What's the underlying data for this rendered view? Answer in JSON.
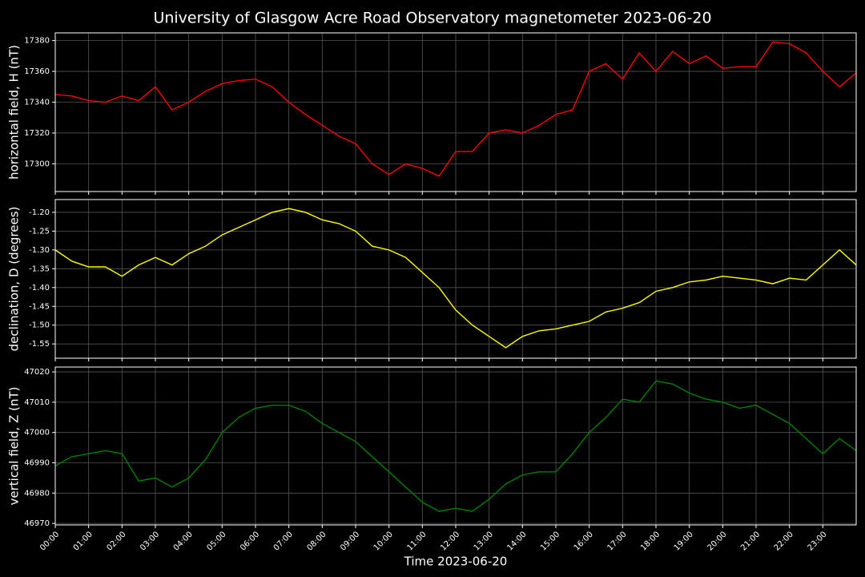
{
  "title": "University of Glasgow Acre Road Observatory magnetometer 2023-06-20",
  "chart_data": [
    {
      "type": "line",
      "y_label": "horizontal field, H (nT)",
      "xlim": [
        0,
        24
      ],
      "ylim": [
        17282,
        17385
      ],
      "grid": true,
      "yticks": [
        17300,
        17320,
        17340,
        17360,
        17380
      ],
      "x": [
        0,
        0.5,
        1,
        1.5,
        2,
        2.5,
        3,
        3.5,
        4,
        4.5,
        5,
        5.5,
        6,
        6.5,
        7,
        7.5,
        8,
        8.5,
        9,
        9.5,
        10,
        10.5,
        11,
        11.5,
        12,
        12.5,
        13,
        13.5,
        14,
        14.5,
        15,
        15.5,
        16,
        16.5,
        17,
        17.5,
        18,
        18.5,
        19,
        19.5,
        20,
        20.5,
        21,
        21.5,
        22,
        22.5,
        23,
        23.5,
        24
      ],
      "series": [
        {
          "name": "H",
          "color": "#ff0000",
          "values": [
            17345,
            17344,
            17341,
            17340,
            17344,
            17341,
            17350,
            17335,
            17340,
            17347,
            17352,
            17354,
            17355,
            17350,
            17340,
            17332,
            17325,
            17318,
            17313,
            17300,
            17293,
            17300,
            17297,
            17292,
            17308,
            17308,
            17320,
            17322,
            17320,
            17325,
            17332,
            17335,
            17360,
            17365,
            17355,
            17372,
            17360,
            17373,
            17365,
            17370,
            17362,
            17363,
            17363,
            17379,
            17378,
            17372,
            17360,
            17350,
            17359
          ]
        }
      ]
    },
    {
      "type": "line",
      "y_label": "declination, D (degrees)",
      "xlim": [
        0,
        24
      ],
      "ylim": [
        -1.588,
        -1.166
      ],
      "grid": true,
      "yticks": [
        {
          "value": -1.55,
          "label": "-1.55"
        },
        {
          "value": -1.5,
          "label": "-1.50"
        },
        {
          "value": -1.45,
          "label": "-1.45"
        },
        {
          "value": -1.4,
          "label": "-1.40"
        },
        {
          "value": -1.35,
          "label": "-1.35"
        },
        {
          "value": -1.3,
          "label": "-1.30"
        },
        {
          "value": -1.25,
          "label": "-1.25"
        },
        {
          "value": -1.2,
          "label": "-1.20"
        }
      ],
      "x": [
        0,
        0.5,
        1,
        1.5,
        2,
        2.5,
        3,
        3.5,
        4,
        4.5,
        5,
        5.5,
        6,
        6.5,
        7,
        7.5,
        8,
        8.5,
        9,
        9.5,
        10,
        10.5,
        11,
        11.5,
        12,
        12.5,
        13,
        13.5,
        14,
        14.5,
        15,
        15.5,
        16,
        16.5,
        17,
        17.5,
        18,
        18.5,
        19,
        19.5,
        20,
        20.5,
        21,
        21.5,
        22,
        22.5,
        23,
        23.5,
        24
      ],
      "series": [
        {
          "name": "D",
          "color": "#ffff00",
          "values": [
            -1.3,
            -1.33,
            -1.345,
            -1.345,
            -1.37,
            -1.34,
            -1.32,
            -1.34,
            -1.31,
            -1.29,
            -1.26,
            -1.24,
            -1.22,
            -1.2,
            -1.19,
            -1.2,
            -1.22,
            -1.23,
            -1.25,
            -1.29,
            -1.3,
            -1.32,
            -1.36,
            -1.4,
            -1.46,
            -1.5,
            -1.53,
            -1.56,
            -1.53,
            -1.515,
            -1.51,
            -1.5,
            -1.49,
            -1.465,
            -1.455,
            -1.44,
            -1.41,
            -1.4,
            -1.385,
            -1.38,
            -1.37,
            -1.375,
            -1.38,
            -1.39,
            -1.375,
            -1.38,
            -1.34,
            -1.3,
            -1.34
          ]
        }
      ]
    },
    {
      "type": "line",
      "y_label": "vertical field, Z (nT)",
      "x_label": "Time 2023-06-20",
      "xlim": [
        0,
        24
      ],
      "ylim": [
        46969.5,
        47021.6
      ],
      "grid": true,
      "yticks": [
        46970,
        46980,
        46990,
        47000,
        47010,
        47020
      ],
      "xticks": [
        {
          "value": 0,
          "label": "00:00"
        },
        {
          "value": 1,
          "label": "01:00"
        },
        {
          "value": 2,
          "label": "02:00"
        },
        {
          "value": 3,
          "label": "03:00"
        },
        {
          "value": 4,
          "label": "04:00"
        },
        {
          "value": 5,
          "label": "05:00"
        },
        {
          "value": 6,
          "label": "06:00"
        },
        {
          "value": 7,
          "label": "07:00"
        },
        {
          "value": 8,
          "label": "08:00"
        },
        {
          "value": 9,
          "label": "09:00"
        },
        {
          "value": 10,
          "label": "10:00"
        },
        {
          "value": 11,
          "label": "11:00"
        },
        {
          "value": 12,
          "label": "12:00"
        },
        {
          "value": 13,
          "label": "13:00"
        },
        {
          "value": 14,
          "label": "14:00"
        },
        {
          "value": 15,
          "label": "15:00"
        },
        {
          "value": 16,
          "label": "16:00"
        },
        {
          "value": 17,
          "label": "17:00"
        },
        {
          "value": 18,
          "label": "18:00"
        },
        {
          "value": 19,
          "label": "19:00"
        },
        {
          "value": 20,
          "label": "20:00"
        },
        {
          "value": 21,
          "label": "21:00"
        },
        {
          "value": 22,
          "label": "22:00"
        },
        {
          "value": 23,
          "label": "23:00"
        }
      ],
      "x": [
        0,
        0.5,
        1,
        1.5,
        2,
        2.5,
        3,
        3.5,
        4,
        4.5,
        5,
        5.5,
        6,
        6.5,
        7,
        7.5,
        8,
        8.5,
        9,
        9.5,
        10,
        10.5,
        11,
        11.5,
        12,
        12.5,
        13,
        13.5,
        14,
        14.5,
        15,
        15.5,
        16,
        16.5,
        17,
        17.5,
        18,
        18.5,
        19,
        19.5,
        20,
        20.5,
        21,
        21.5,
        22,
        22.5,
        23,
        23.5,
        24
      ],
      "series": [
        {
          "name": "Z",
          "color": "#008000",
          "values": [
            46989,
            46992,
            46993,
            46994,
            46993,
            46984,
            46985,
            46982,
            46985,
            46991,
            47000,
            47005,
            47008,
            47009,
            47009,
            47007,
            47003,
            47000,
            46997,
            46992,
            46987,
            46982,
            46977,
            46974,
            46975,
            46974,
            46978,
            46983,
            46986,
            46987,
            46987,
            46993,
            47000,
            47005,
            47011,
            47010,
            47017,
            47016,
            47013,
            47011,
            47010,
            47008,
            47009,
            47006,
            47003,
            46998,
            46993,
            46998,
            46994
          ]
        }
      ]
    }
  ]
}
